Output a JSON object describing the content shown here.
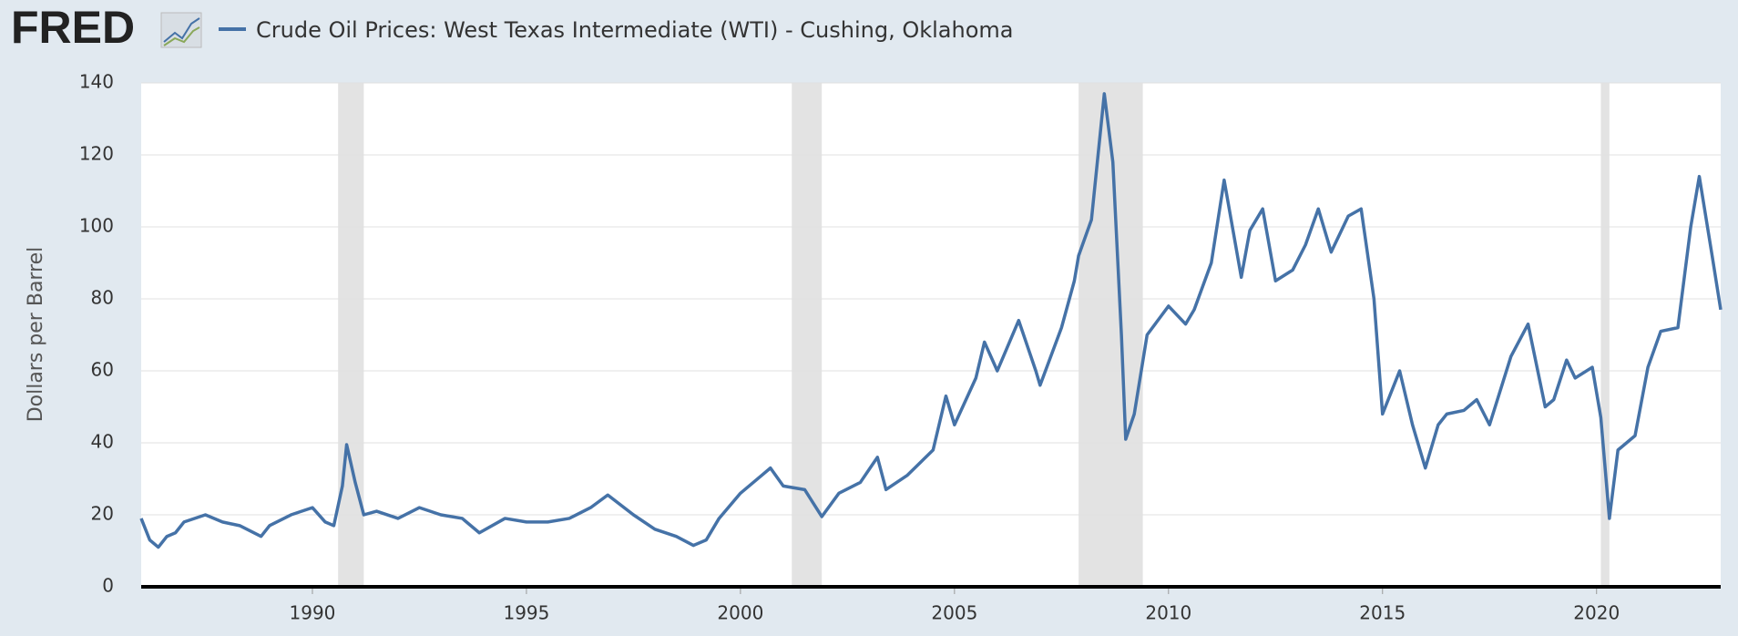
{
  "brand": "FRED",
  "chart_data": {
    "type": "line",
    "ylabel": "Dollars per Barrel",
    "x": [
      1986.0,
      1986.2,
      1986.4,
      1986.6,
      1986.8,
      1987.0,
      1987.5,
      1987.9,
      1988.3,
      1988.8,
      1989.0,
      1989.5,
      1990.0,
      1990.3,
      1990.5,
      1990.7,
      1990.8,
      1991.0,
      1991.2,
      1991.5,
      1992.0,
      1992.5,
      1993.0,
      1993.5,
      1993.9,
      1994.5,
      1995.0,
      1995.5,
      1996.0,
      1996.5,
      1996.9,
      1997.5,
      1998.0,
      1998.5,
      1998.9,
      1999.2,
      1999.5,
      2000.0,
      2000.5,
      2000.7,
      2001.0,
      2001.5,
      2001.9,
      2002.3,
      2002.8,
      2003.2,
      2003.4,
      2003.9,
      2004.5,
      2004.8,
      2005.0,
      2005.5,
      2005.7,
      2006.0,
      2006.5,
      2006.9,
      2007.0,
      2007.5,
      2007.8,
      2007.9,
      2008.2,
      2008.5,
      2008.7,
      2008.9,
      2009.0,
      2009.2,
      2009.5,
      2010.0,
      2010.4,
      2010.6,
      2011.0,
      2011.3,
      2011.7,
      2011.9,
      2012.2,
      2012.5,
      2012.9,
      2013.2,
      2013.5,
      2013.8,
      2014.2,
      2014.5,
      2014.8,
      2015.0,
      2015.4,
      2015.7,
      2016.0,
      2016.3,
      2016.5,
      2016.9,
      2017.2,
      2017.5,
      2018.0,
      2018.4,
      2018.8,
      2019.0,
      2019.3,
      2019.5,
      2019.9,
      2020.1,
      2020.3,
      2020.5,
      2020.9,
      2021.2,
      2021.5,
      2021.9,
      2022.2,
      2022.4,
      2022.7,
      2022.9
    ],
    "series": [
      {
        "name": "Crude Oil Prices: West Texas Intermediate (WTI) - Cushing, Oklahoma",
        "color": "#4572a7",
        "values": [
          19,
          13,
          11,
          14,
          15,
          18,
          20,
          18,
          17,
          14,
          17,
          20,
          22,
          18,
          17,
          28,
          39.5,
          29,
          20,
          21,
          19,
          22,
          20,
          19,
          15,
          19,
          18,
          18,
          19,
          22,
          25.5,
          20,
          16,
          14,
          11.5,
          13,
          19,
          26,
          31,
          33,
          28,
          27,
          19.5,
          26,
          29,
          36,
          27,
          31,
          38,
          53,
          45,
          58,
          68,
          60,
          74,
          60,
          56,
          72,
          85,
          92,
          102,
          137,
          118,
          70,
          41,
          48,
          70,
          78,
          73,
          77,
          90,
          113,
          86,
          99,
          105,
          85,
          88,
          95,
          105,
          93,
          103,
          105,
          80,
          48,
          60,
          45,
          33,
          45,
          48,
          49,
          52,
          45,
          64,
          73,
          50,
          52,
          63,
          58,
          61,
          47,
          19,
          38,
          42,
          61,
          71,
          72,
          100,
          114,
          92,
          77
        ]
      }
    ],
    "recessions": [
      [
        1990.6,
        1991.2
      ],
      [
        2001.2,
        2001.9
      ],
      [
        2007.9,
        2009.4
      ],
      [
        2020.1,
        2020.3
      ]
    ],
    "xlim": [
      1986.0,
      2022.9
    ],
    "ylim": [
      0,
      140
    ],
    "xticks": [
      1990,
      1995,
      2000,
      2005,
      2010,
      2015,
      2020
    ],
    "yticks": [
      0,
      20,
      40,
      60,
      80,
      100,
      120,
      140
    ],
    "grid": true
  }
}
